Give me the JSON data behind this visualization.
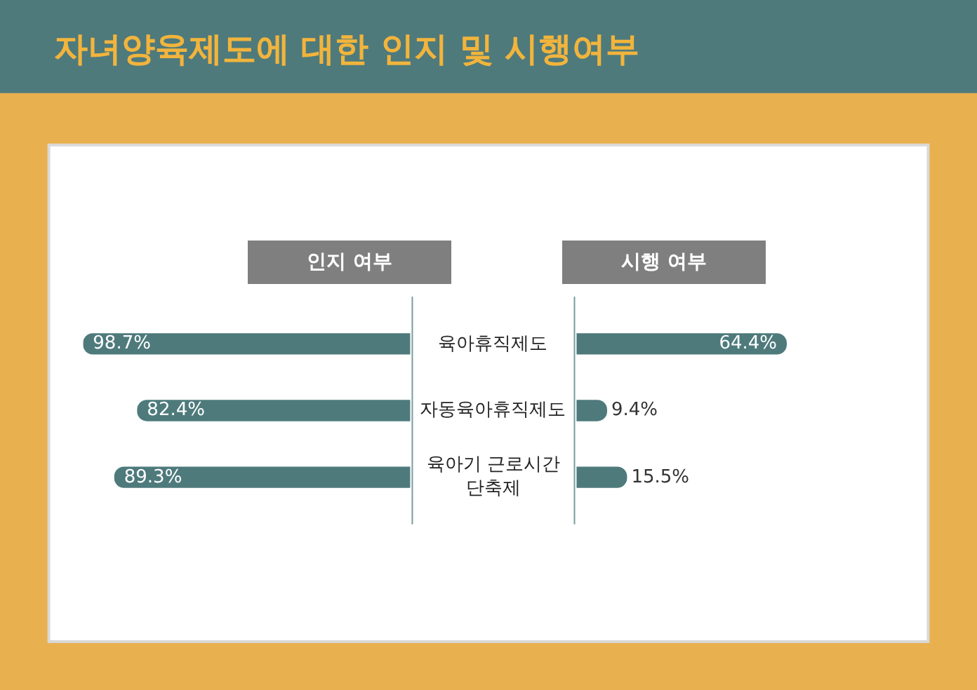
{
  "chart_data": [
    {
      "type": "bar",
      "orientation": "horizontal",
      "title": "자녀양육제도에 대한 인지 및 시행여부",
      "subtitle": "인지 여부",
      "categories": [
        "육아휴직제도",
        "자동육아휴직제도",
        "육아기 근로시간\n단축제"
      ],
      "values": [
        98.7,
        82.4,
        89.3
      ],
      "value_labels": [
        "98.7%",
        "82.4%",
        "89.3%"
      ],
      "color": "#4e7a7c",
      "tick_labels": false
    },
    {
      "type": "bar",
      "orientation": "horizontal",
      "subtitle": "시행 여부",
      "categories": [
        null,
        null,
        null
      ],
      "values": [
        64.4,
        9.4,
        15.5
      ],
      "value_labels": [
        "64.4%",
        "9.4%",
        "15.5%"
      ],
      "color": "#4e7a7c",
      "tick_labels": false
    }
  ]
}
